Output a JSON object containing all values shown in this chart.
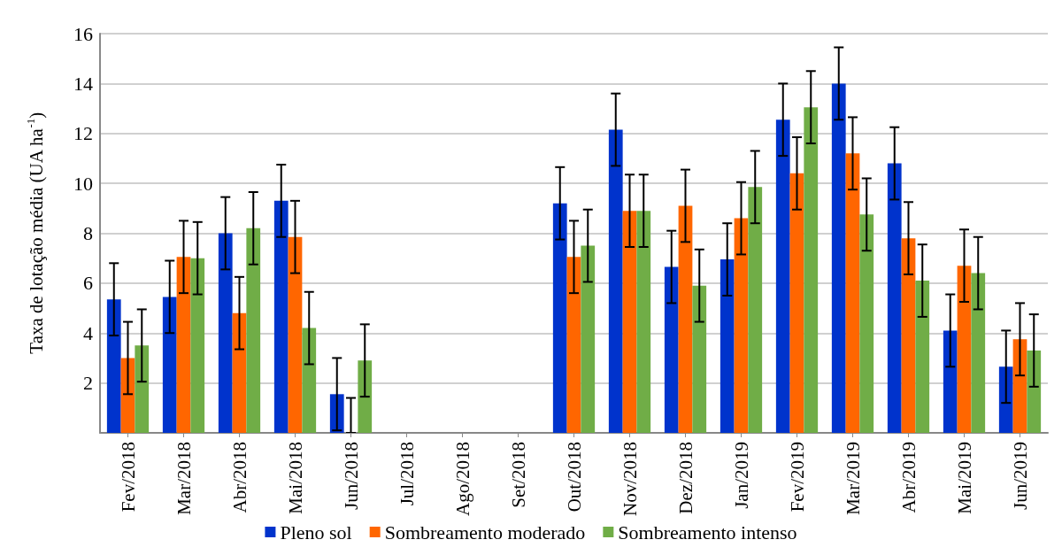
{
  "chart_data": {
    "type": "bar",
    "ylabel": "Taxa de lotação média (UA ha$^{-1}$)",
    "categories": [
      "Fev/2018",
      "Mar/2018",
      "Abr/2018",
      "Mai/2018",
      "Jun/2018",
      "Jul/2018",
      "Ago/2018",
      "Set/2018",
      "Out/2018",
      "Nov/2018",
      "Dez/2018",
      "Jan/2019",
      "Fev/2019",
      "Mar/2019",
      "Abr/2019",
      "Mai/2019",
      "Jun/2019"
    ],
    "series": [
      {
        "name": "Pleno sol",
        "color": "#0033cc",
        "values": [
          5.35,
          5.45,
          8.0,
          9.3,
          1.55,
          null,
          null,
          null,
          9.2,
          12.15,
          6.65,
          6.95,
          12.55,
          14.0,
          10.8,
          4.1,
          2.65
        ],
        "errors": [
          1.45,
          1.45,
          1.45,
          1.45,
          1.45,
          null,
          null,
          null,
          1.45,
          1.45,
          1.45,
          1.45,
          1.45,
          1.45,
          1.45,
          1.45,
          1.45
        ]
      },
      {
        "name": "Sombreamento moderado",
        "color": "#ff6600",
        "values": [
          3.0,
          7.05,
          4.8,
          7.85,
          0,
          null,
          null,
          null,
          7.05,
          8.9,
          9.1,
          8.6,
          10.4,
          11.2,
          7.8,
          6.7,
          3.75
        ],
        "errors": [
          1.45,
          1.45,
          1.45,
          1.45,
          [
            0,
            1.4
          ],
          null,
          null,
          null,
          1.45,
          1.45,
          1.45,
          1.45,
          1.45,
          1.45,
          1.45,
          1.45,
          1.45
        ]
      },
      {
        "name": "Sombreamento intenso",
        "color": "#70ad47",
        "values": [
          3.5,
          7.0,
          8.2,
          4.2,
          2.9,
          null,
          null,
          null,
          7.5,
          8.9,
          5.9,
          9.85,
          13.05,
          8.75,
          6.1,
          6.4,
          3.3
        ],
        "errors": [
          1.45,
          1.45,
          1.45,
          1.45,
          1.45,
          null,
          null,
          null,
          1.45,
          1.45,
          1.45,
          1.45,
          1.45,
          1.45,
          1.45,
          1.45,
          1.45
        ]
      }
    ],
    "ylim": [
      0,
      16
    ],
    "yticks": [
      {
        "value": 0,
        "label": null
      },
      2,
      4,
      6,
      8,
      10,
      12,
      14,
      16
    ],
    "grid": "y",
    "legend": "bottom"
  }
}
